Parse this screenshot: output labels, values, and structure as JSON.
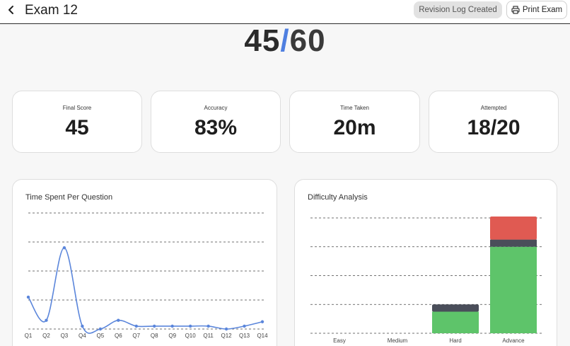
{
  "header": {
    "title": "Exam 12",
    "revision_label": "Revision Log Created",
    "print_label": "Print Exam"
  },
  "score": {
    "obtained": "45",
    "separator": "/",
    "total": "60"
  },
  "stats": [
    {
      "label": "Final Score",
      "value": "45"
    },
    {
      "label": "Accuracy",
      "value": "83%"
    },
    {
      "label": "Time Taken",
      "value": "20m"
    },
    {
      "label": "Attempted",
      "value": "18/20"
    }
  ],
  "time_panel": {
    "title": "Time Spent Per Question"
  },
  "difficulty_panel": {
    "title": "Difficulty Analysis"
  },
  "colors": {
    "accent": "#4f7fe0",
    "line": "#5b86db",
    "correct": "#5ec46a",
    "skipped": "#4a4e5a",
    "wrong": "#e05a52"
  },
  "chart_data": [
    {
      "type": "line",
      "title": "Time Spent Per Question",
      "x": [
        "Q1",
        "Q2",
        "Q3",
        "Q4",
        "Q5",
        "Q6",
        "Q7",
        "Q8",
        "Q9",
        "Q10",
        "Q11",
        "Q12",
        "Q13",
        "Q14"
      ],
      "values": [
        11,
        3,
        28,
        1,
        0,
        3,
        1,
        1,
        1,
        1,
        1,
        0,
        1,
        2.5
      ],
      "ylim": [
        0,
        40
      ],
      "grid": true
    },
    {
      "type": "bar",
      "title": "Difficulty Analysis",
      "categories": [
        "Easy",
        "Medium",
        "Hard",
        "Advance"
      ],
      "series": [
        {
          "color": "#5ec46a",
          "values": [
            0,
            0,
            3,
            12
          ]
        },
        {
          "color": "#4a4e5a",
          "values": [
            0,
            0,
            1,
            1
          ]
        },
        {
          "color": "#e05a52",
          "values": [
            0,
            0,
            0,
            3.2
          ]
        }
      ],
      "ylim": [
        0,
        16
      ],
      "grid": true
    }
  ]
}
